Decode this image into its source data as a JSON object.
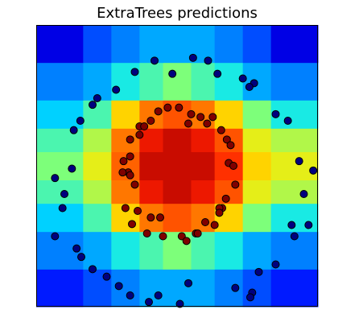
{
  "chart_data": {
    "type": "scatter",
    "title": "ExtraTrees predictions",
    "xlabel": "",
    "ylabel": "",
    "xlim": [
      -1.5,
      1.5
    ],
    "ylim": [
      -1.5,
      1.5
    ],
    "ticks_visible": false,
    "grid": false,
    "background": "decision-surface heatmap (jet colormap)",
    "colormap": [
      "#00007f",
      "#0000ff",
      "#0080ff",
      "#00e5ff",
      "#7dff7a",
      "#ffea00",
      "#ff7700",
      "#ff1e00",
      "#a50000"
    ],
    "heatmap": {
      "x_edges": [
        -1.5,
        -1.0,
        -0.7,
        -0.4,
        -0.15,
        0.15,
        0.4,
        0.7,
        1.0,
        1.5
      ],
      "y_edges": [
        -1.5,
        -1.1,
        -0.7,
        -0.4,
        -0.15,
        0.15,
        0.4,
        0.7,
        1.1,
        1.5
      ],
      "z": [
        [
          0.15,
          0.2,
          0.25,
          0.3,
          0.3,
          0.3,
          0.25,
          0.2,
          0.15
        ],
        [
          0.25,
          0.3,
          0.4,
          0.45,
          0.5,
          0.45,
          0.4,
          0.3,
          0.25
        ],
        [
          0.35,
          0.45,
          0.65,
          0.75,
          0.8,
          0.75,
          0.65,
          0.5,
          0.4
        ],
        [
          0.45,
          0.55,
          0.75,
          0.9,
          0.95,
          0.9,
          0.8,
          0.6,
          0.55
        ],
        [
          0.5,
          0.6,
          0.78,
          0.95,
          0.95,
          0.95,
          0.85,
          0.65,
          0.6
        ],
        [
          0.45,
          0.55,
          0.75,
          0.9,
          0.95,
          0.9,
          0.8,
          0.6,
          0.55
        ],
        [
          0.35,
          0.45,
          0.65,
          0.75,
          0.8,
          0.75,
          0.65,
          0.5,
          0.4
        ],
        [
          0.25,
          0.3,
          0.4,
          0.45,
          0.5,
          0.45,
          0.4,
          0.3,
          0.25
        ],
        [
          0.1,
          0.2,
          0.25,
          0.3,
          0.3,
          0.3,
          0.25,
          0.2,
          0.1
        ]
      ]
    },
    "series": [
      {
        "class": 0,
        "color": "#00007f",
        "points": [
          [
            -0.24,
            1.12
          ],
          [
            0.17,
            1.15
          ],
          [
            0.33,
            1.12
          ],
          [
            -0.45,
            1.0
          ],
          [
            -0.05,
            0.98
          ],
          [
            0.43,
            0.98
          ],
          [
            0.7,
            0.93
          ],
          [
            0.82,
            0.88
          ],
          [
            0.77,
            0.84
          ],
          [
            -0.65,
            0.81
          ],
          [
            -0.85,
            0.72
          ],
          [
            -0.9,
            0.65
          ],
          [
            1.05,
            0.55
          ],
          [
            1.18,
            0.48
          ],
          [
            -1.03,
            0.48
          ],
          [
            -1.1,
            0.38
          ],
          [
            1.3,
            0.05
          ],
          [
            1.45,
            -0.05
          ],
          [
            -1.12,
            -0.03
          ],
          [
            -1.3,
            -0.13
          ],
          [
            -1.2,
            -0.3
          ],
          [
            1.35,
            -0.3
          ],
          [
            -1.22,
            -0.45
          ],
          [
            1.22,
            -0.63
          ],
          [
            1.4,
            -0.63
          ],
          [
            -1.3,
            -0.75
          ],
          [
            1.25,
            -0.75
          ],
          [
            -1.07,
            -0.88
          ],
          [
            -1.02,
            -0.97
          ],
          [
            1.05,
            -1.05
          ],
          [
            -0.9,
            -1.1
          ],
          [
            0.87,
            -1.13
          ],
          [
            -0.75,
            -1.18
          ],
          [
            -0.62,
            -1.28
          ],
          [
            0.12,
            -1.25
          ],
          [
            0.62,
            -1.3
          ],
          [
            0.8,
            -1.35
          ],
          [
            -0.5,
            -1.38
          ],
          [
            -0.2,
            -1.38
          ],
          [
            0.78,
            -1.4
          ],
          [
            -0.3,
            -1.45
          ],
          [
            0.03,
            -1.47
          ],
          [
            0.32,
            -1.53
          ]
        ]
      },
      {
        "class": 1,
        "color": "#7f0000",
        "points": [
          [
            -0.1,
            0.62
          ],
          [
            0.02,
            0.62
          ],
          [
            -0.2,
            0.58
          ],
          [
            0.15,
            0.55
          ],
          [
            0.25,
            0.52
          ],
          [
            0.38,
            0.52
          ],
          [
            -0.28,
            0.48
          ],
          [
            0.32,
            0.45
          ],
          [
            -0.4,
            0.42
          ],
          [
            -0.35,
            0.42
          ],
          [
            0.47,
            0.38
          ],
          [
            0.12,
            0.45
          ],
          [
            -0.4,
            0.33
          ],
          [
            -0.5,
            0.28
          ],
          [
            0.53,
            0.28
          ],
          [
            0.57,
            0.22
          ],
          [
            -0.5,
            0.1
          ],
          [
            -0.57,
            0.05
          ],
          [
            0.55,
            0.03
          ],
          [
            0.6,
            0.0
          ],
          [
            -0.52,
            -0.07
          ],
          [
            -0.58,
            -0.07
          ],
          [
            0.62,
            -0.2
          ],
          [
            -0.5,
            -0.1
          ],
          [
            -0.45,
            -0.2
          ],
          [
            0.52,
            -0.35
          ],
          [
            0.48,
            -0.45
          ],
          [
            -0.55,
            -0.45
          ],
          [
            -0.42,
            -0.48
          ],
          [
            0.45,
            -0.45
          ],
          [
            -0.28,
            -0.55
          ],
          [
            -0.18,
            -0.55
          ],
          [
            0.3,
            -0.6
          ],
          [
            -0.48,
            -0.62
          ],
          [
            0.4,
            -0.63
          ],
          [
            -0.32,
            -0.72
          ],
          [
            0.2,
            -0.72
          ],
          [
            -0.15,
            -0.75
          ],
          [
            0.05,
            -0.75
          ],
          [
            0.22,
            -0.72
          ],
          [
            0.1,
            -0.8
          ],
          [
            0.45,
            -0.5
          ]
        ]
      }
    ]
  }
}
